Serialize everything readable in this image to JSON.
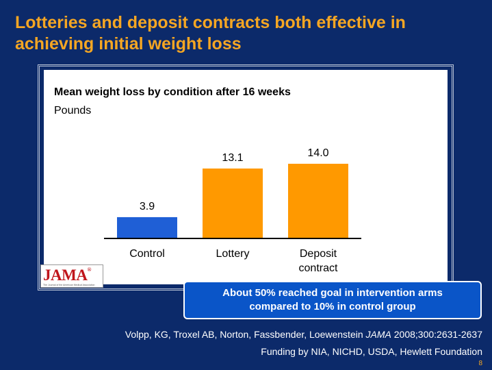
{
  "slide": {
    "title": "Lotteries and deposit contracts both effective in achieving initial weight loss",
    "callout": {
      "line1": "About 50% reached goal in intervention arms",
      "line2": "compared to 10% in control group"
    },
    "citation": {
      "authors": "Volpp, KG, Troxel AB, Norton, Fassbender, Loewenstein ",
      "journal": "JAMA",
      "details": " 2008;300:2631-2637"
    },
    "funding": "Funding by NIA, NICHD, USDA, Hewlett Foundation",
    "page_number": "8",
    "logo": {
      "text": "JAMA",
      "mark": "®",
      "tagline": "The Journal of the American Medical Association"
    }
  },
  "colors": {
    "background": "#0c2a6a",
    "title": "#f5a623",
    "control_bar": "#1f5fd6",
    "intervention_bar": "#ff9900",
    "callout": "#0a55c8"
  },
  "chart_data": {
    "type": "bar",
    "title": "Mean weight loss by condition after 16 weeks",
    "subtitle": "Pounds",
    "categories": [
      "Control",
      "Lottery",
      "Deposit contract"
    ],
    "category_lines": [
      [
        "Control"
      ],
      [
        "Lottery"
      ],
      [
        "Deposit",
        "contract"
      ]
    ],
    "values": [
      3.9,
      13.1,
      14.0
    ],
    "labels": [
      "3.9",
      "13.1",
      "14.0"
    ],
    "ylim": [
      0,
      14.0
    ],
    "xlabel": "",
    "ylabel": "Pounds"
  }
}
